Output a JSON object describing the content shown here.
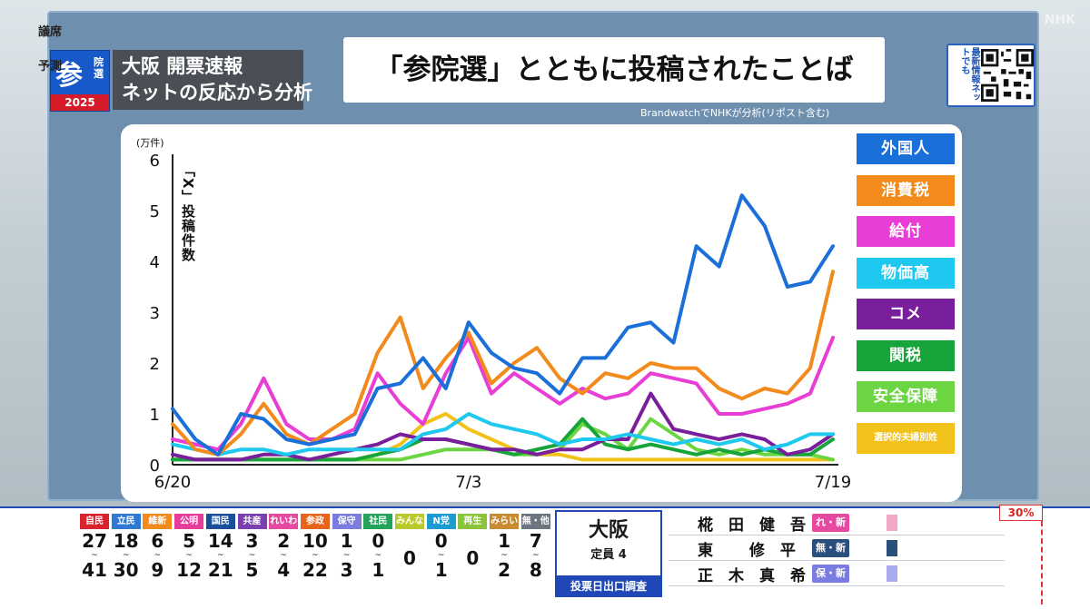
{
  "broadcaster": "NHK",
  "badge": {
    "kanji": "参",
    "sub": "院選",
    "year": "2025"
  },
  "program": {
    "line1": "大阪 開票速報",
    "line2": "ネットの反応から分析"
  },
  "headline": "「参院選」とともに投稿されたことば",
  "qr": {
    "label": "最新情報ネットでも"
  },
  "source_note": "BrandwatchでNHKが分析(リポスト含む)",
  "chart_data": {
    "type": "line",
    "y_unit": "(万件)",
    "ylabel": "「X」投稿件数",
    "x_ticks": [
      "6/20",
      "7/3",
      "7/19"
    ],
    "x": [
      "6/20",
      "6/21",
      "6/22",
      "6/23",
      "6/24",
      "6/25",
      "6/26",
      "6/27",
      "6/28",
      "6/29",
      "6/30",
      "7/1",
      "7/2",
      "7/3",
      "7/4",
      "7/5",
      "7/6",
      "7/7",
      "7/8",
      "7/9",
      "7/10",
      "7/11",
      "7/12",
      "7/13",
      "7/14",
      "7/15",
      "7/16",
      "7/17",
      "7/18",
      "7/19"
    ],
    "ylim": [
      0,
      6
    ],
    "y_ticks": [
      0,
      1,
      2,
      3,
      4,
      5,
      6
    ],
    "series": [
      {
        "name": "外国人",
        "color": "#1a6fd8",
        "values": [
          1.1,
          0.5,
          0.2,
          1.0,
          0.9,
          0.5,
          0.4,
          0.5,
          0.6,
          1.5,
          1.6,
          2.1,
          1.5,
          2.8,
          2.2,
          1.9,
          1.8,
          1.4,
          2.1,
          2.1,
          2.7,
          2.8,
          2.4,
          4.3,
          3.9,
          5.3,
          4.7,
          3.5,
          3.6,
          4.3
        ]
      },
      {
        "name": "消費税",
        "color": "#f28a1c",
        "values": [
          0.8,
          0.3,
          0.2,
          0.6,
          1.2,
          0.6,
          0.4,
          0.7,
          1.0,
          2.2,
          2.9,
          1.5,
          2.1,
          2.6,
          1.6,
          2.0,
          2.3,
          1.7,
          1.4,
          1.8,
          1.7,
          2.0,
          1.9,
          1.9,
          1.5,
          1.3,
          1.5,
          1.4,
          1.9,
          3.8
        ]
      },
      {
        "name": "給付",
        "color": "#e83ed6",
        "values": [
          0.5,
          0.4,
          0.3,
          0.8,
          1.7,
          0.8,
          0.5,
          0.5,
          0.7,
          1.8,
          1.2,
          0.8,
          1.8,
          2.5,
          1.4,
          1.8,
          1.5,
          1.2,
          1.5,
          1.3,
          1.4,
          1.8,
          1.7,
          1.6,
          1.0,
          1.0,
          1.1,
          1.2,
          1.4,
          2.5
        ]
      },
      {
        "name": "物価高",
        "color": "#1fc8ee",
        "values": [
          0.4,
          0.3,
          0.2,
          0.3,
          0.3,
          0.2,
          0.3,
          0.3,
          0.3,
          0.3,
          0.3,
          0.6,
          0.7,
          1.0,
          0.8,
          0.7,
          0.6,
          0.4,
          0.5,
          0.5,
          0.6,
          0.5,
          0.4,
          0.5,
          0.4,
          0.5,
          0.3,
          0.4,
          0.6,
          0.6
        ]
      },
      {
        "name": "コメ",
        "color": "#7a1f9c",
        "values": [
          0.2,
          0.1,
          0.1,
          0.1,
          0.2,
          0.2,
          0.1,
          0.2,
          0.3,
          0.4,
          0.6,
          0.5,
          0.5,
          0.4,
          0.3,
          0.3,
          0.2,
          0.3,
          0.3,
          0.5,
          0.5,
          1.4,
          0.7,
          0.6,
          0.5,
          0.6,
          0.5,
          0.2,
          0.3,
          0.6
        ]
      },
      {
        "name": "関税",
        "color": "#17a43a",
        "values": [
          0.1,
          0.1,
          0.1,
          0.1,
          0.1,
          0.1,
          0.1,
          0.1,
          0.1,
          0.2,
          0.3,
          0.5,
          0.5,
          0.4,
          0.3,
          0.2,
          0.3,
          0.4,
          0.9,
          0.4,
          0.3,
          0.4,
          0.3,
          0.2,
          0.3,
          0.2,
          0.3,
          0.2,
          0.2,
          0.5
        ]
      },
      {
        "name": "安全保障",
        "color": "#6cd642",
        "values": [
          0.1,
          0.1,
          0.1,
          0.1,
          0.1,
          0.1,
          0.1,
          0.1,
          0.1,
          0.1,
          0.1,
          0.2,
          0.3,
          0.3,
          0.3,
          0.2,
          0.2,
          0.3,
          0.8,
          0.6,
          0.3,
          0.9,
          0.6,
          0.3,
          0.2,
          0.3,
          0.2,
          0.2,
          0.2,
          0.1
        ]
      },
      {
        "name": "選択的夫婦別姓",
        "color": "#f3c21a",
        "values": [
          0.1,
          0.1,
          0.1,
          0.1,
          0.1,
          0.1,
          0.1,
          0.1,
          0.1,
          0.2,
          0.4,
          0.8,
          1.0,
          0.7,
          0.5,
          0.3,
          0.2,
          0.2,
          0.1,
          0.1,
          0.1,
          0.1,
          0.1,
          0.1,
          0.1,
          0.1,
          0.1,
          0.1,
          0.1,
          0.1
        ]
      }
    ]
  },
  "seats": {
    "label_top": "議席",
    "label_bottom": "予測",
    "parties": [
      {
        "name": "自民",
        "color": "#d9232e",
        "low": "27",
        "high": "41"
      },
      {
        "name": "立民",
        "color": "#2f78d4",
        "low": "18",
        "high": "30"
      },
      {
        "name": "維新",
        "color": "#f28a1c",
        "low": "6",
        "high": "9"
      },
      {
        "name": "公明",
        "color": "#e63d9c",
        "low": "5",
        "high": "12"
      },
      {
        "name": "国民",
        "color": "#1b4f9c",
        "low": "14",
        "high": "21"
      },
      {
        "name": "共産",
        "color": "#7b3fb1",
        "low": "3",
        "high": "5"
      },
      {
        "name": "れいわ",
        "color": "#e64aa0",
        "low": "2",
        "high": "4"
      },
      {
        "name": "参政",
        "color": "#e8641a",
        "low": "10",
        "high": "22"
      },
      {
        "name": "保守",
        "color": "#7a7ce0",
        "low": "1",
        "high": "3"
      },
      {
        "name": "社民",
        "color": "#24a35a",
        "low": "0",
        "high": "1"
      },
      {
        "name": "みんな",
        "color": "#b9c92c",
        "low": "",
        "high": "",
        "single": "0"
      },
      {
        "name": "N党",
        "color": "#1e9bd1",
        "low": "0",
        "high": "1"
      },
      {
        "name": "再生",
        "color": "#8ac43a",
        "low": "",
        "high": "",
        "single": "0"
      },
      {
        "name": "みらい",
        "color": "#c98b2f",
        "low": "1",
        "high": "2"
      },
      {
        "name": "無・他",
        "color": "#6c7580",
        "low": "7",
        "high": "8"
      }
    ]
  },
  "district": {
    "name": "大阪",
    "teiin": "定員 4",
    "exit_poll": "投票日出口調査"
  },
  "candidates": [
    {
      "name": "椛田健吾",
      "party": "れ・新",
      "party_color": "#e64aa0",
      "bar_color": "#f3a8c8"
    },
    {
      "name": "東 修平",
      "party": "無・新",
      "party_color": "#2b4f7c",
      "bar_color": "#2b4f7c"
    },
    {
      "name": "正木真希",
      "party": "保・新",
      "party_color": "#7a7ce0",
      "bar_color": "#a9abef"
    }
  ],
  "threshold": "30%"
}
